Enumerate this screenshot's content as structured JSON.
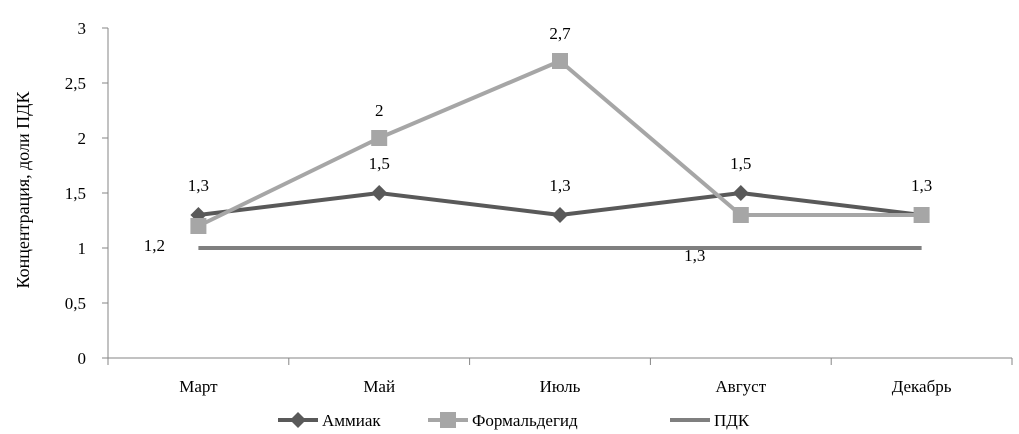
{
  "chart_data": {
    "type": "line",
    "ylabel": "Концентрация, доли ПДК",
    "xlabel": "",
    "categories": [
      "Март",
      "Май",
      "Июль",
      "Август",
      "Декабрь"
    ],
    "ylim": [
      0,
      3
    ],
    "yticks": [
      "0",
      "0,5",
      "1",
      "1,5",
      "2",
      "2,5",
      "3"
    ],
    "grid": false,
    "legend_position": "bottom",
    "series": [
      {
        "name": "Аммиак",
        "values": [
          1.3,
          1.5,
          1.3,
          1.5,
          1.3
        ],
        "labels": [
          "1,3",
          "1,5",
          "1,3",
          "1,5",
          "1,3"
        ],
        "color": "#595959",
        "marker": "diamond"
      },
      {
        "name": "Формальдегид",
        "values": [
          1.2,
          2.0,
          2.7,
          1.3,
          1.3
        ],
        "labels": [
          "1,2",
          "2",
          "2,7",
          "1,3",
          ""
        ],
        "color": "#a6a6a6",
        "marker": "square"
      },
      {
        "name": "ПДК",
        "values": [
          1,
          1,
          1,
          1,
          1
        ],
        "labels": [],
        "color": "#7f7f7f",
        "marker": "none"
      }
    ]
  }
}
